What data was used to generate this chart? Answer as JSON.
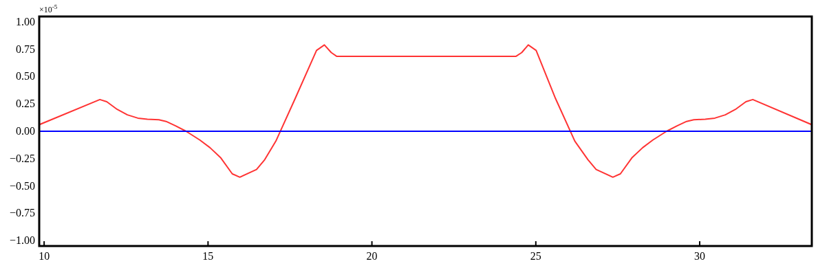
{
  "chart_data": {
    "type": "line",
    "xlim": [
      9.85,
      33.42
    ],
    "xticks": [
      10,
      15,
      20,
      25,
      30
    ],
    "ylim": [
      -1.05,
      1.05
    ],
    "yticks": [
      {
        "value": -1,
        "label": "−1.00"
      },
      {
        "value": -0.75,
        "label": "−0.75"
      },
      {
        "value": -0.5,
        "label": "−0.50"
      },
      {
        "value": -0.25,
        "label": "−0.25"
      },
      {
        "value": 0,
        "label": "0.00"
      },
      {
        "value": 0.25,
        "label": "0.25"
      },
      {
        "value": 0.5,
        "label": "0.50"
      },
      {
        "value": 0.75,
        "label": "0.75"
      },
      {
        "value": 1,
        "label": "1.00"
      }
    ],
    "grid": false,
    "annotations": [
      "×10$^{-5}$"
    ],
    "series": [
      {
        "color": "#ff3333",
        "x": [
          9.85,
          11.7,
          11.91,
          12.23,
          12.54,
          12.86,
          13.15,
          13.5,
          13.72,
          14.01,
          14.33,
          14.75,
          15.06,
          15.38,
          15.74,
          15.97,
          16.48,
          16.73,
          17.07,
          17.66,
          18.31,
          18.55,
          18.76,
          18.93,
          24.39,
          24.57,
          24.77,
          25.01,
          25.6,
          26.19,
          26.59,
          26.84,
          27.35,
          27.58,
          27.94,
          28.26,
          28.57,
          28.99,
          29.31,
          29.6,
          29.82,
          30.17,
          30.46,
          30.78,
          31.09,
          31.41,
          31.62,
          33.42
        ],
        "values": [
          0.06,
          0.29,
          0.27,
          0.2,
          0.15,
          0.12,
          0.11,
          0.105,
          0.09,
          0.05,
          0.0,
          -0.08,
          -0.15,
          -0.24,
          -0.39,
          -0.42,
          -0.35,
          -0.26,
          -0.09,
          0.3,
          0.74,
          0.79,
          0.72,
          0.685,
          0.685,
          0.72,
          0.79,
          0.74,
          0.3,
          -0.09,
          -0.26,
          -0.35,
          -0.42,
          -0.39,
          -0.24,
          -0.15,
          -0.08,
          0.0,
          0.05,
          0.09,
          0.105,
          0.11,
          0.12,
          0.15,
          0.2,
          0.27,
          0.29,
          0.06
        ]
      },
      {
        "color": "#0000ff",
        "x": [
          9.85,
          33.42
        ],
        "values": [
          0,
          0
        ]
      }
    ]
  }
}
